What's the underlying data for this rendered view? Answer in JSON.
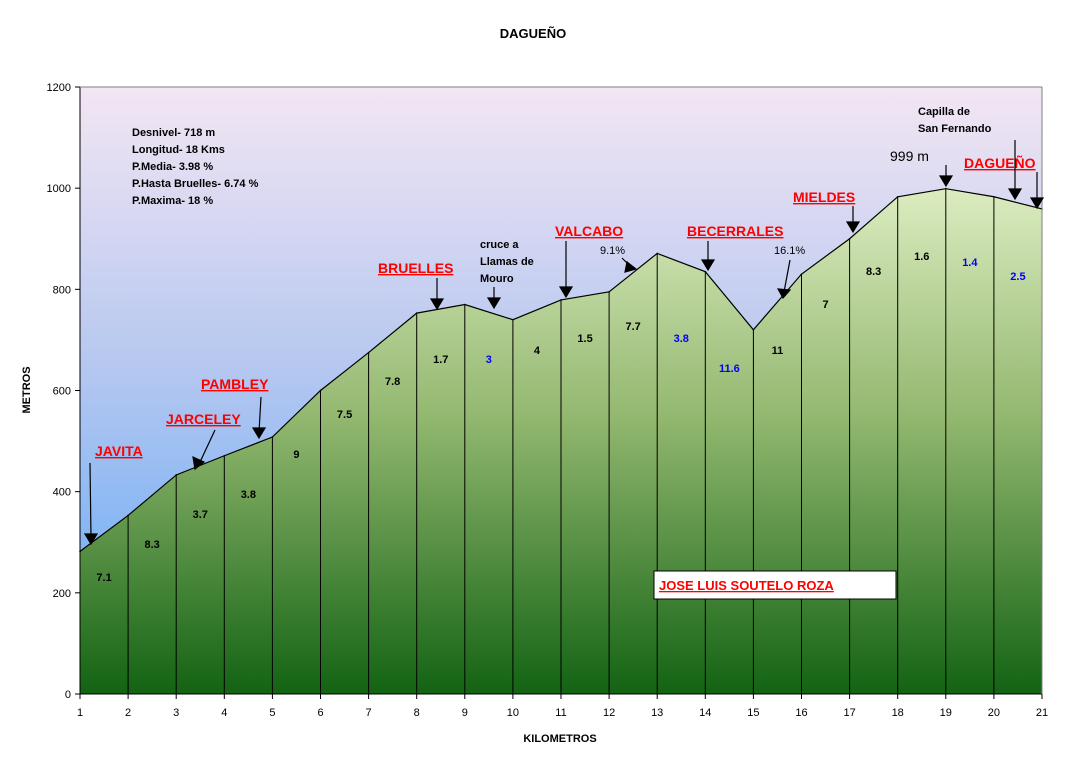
{
  "chart_data": {
    "type": "area",
    "title": "DAGUEÑO",
    "xlabel": "KILOMETROS",
    "ylabel": "METROS",
    "xlim": [
      1,
      21
    ],
    "ylim": [
      0,
      1200
    ],
    "x_ticks": [
      "1",
      "2",
      "3",
      "4",
      "5",
      "6",
      "7",
      "8",
      "9",
      "10",
      "11",
      "12",
      "13",
      "14",
      "15",
      "16",
      "17",
      "18",
      "19",
      "20",
      "21"
    ],
    "y_ticks": [
      "0",
      "200",
      "400",
      "600",
      "800",
      "1000",
      "1200"
    ],
    "x": [
      1,
      2,
      3,
      4,
      5,
      6,
      7,
      8,
      9,
      10,
      11,
      12,
      13,
      14,
      15,
      16,
      17,
      18,
      19,
      20,
      21
    ],
    "values": [
      282,
      353,
      433,
      471,
      508,
      600,
      675,
      753,
      770,
      740,
      779,
      795,
      871,
      835,
      720,
      830,
      900,
      983,
      999,
      983,
      959
    ],
    "segment_grades": [
      {
        "label": "7.1",
        "color": "#000000"
      },
      {
        "label": "8.3",
        "color": "#000000"
      },
      {
        "label": "3.7",
        "color": "#000000"
      },
      {
        "label": "3.8",
        "color": "#000000"
      },
      {
        "label": "9",
        "color": "#000000"
      },
      {
        "label": "7.5",
        "color": "#000000"
      },
      {
        "label": "7.8",
        "color": "#000000"
      },
      {
        "label": "1.7",
        "color": "#000000"
      },
      {
        "label": "3",
        "color": "#0000ff"
      },
      {
        "label": "4",
        "color": "#000000"
      },
      {
        "label": "1.5",
        "color": "#000000"
      },
      {
        "label": "7.7",
        "color": "#000000"
      },
      {
        "label": "3.8",
        "color": "#0000ff"
      },
      {
        "label": "11.6",
        "color": "#0000ff"
      },
      {
        "label": "11",
        "color": "#000000"
      },
      {
        "label": "7",
        "color": "#000000"
      },
      {
        "label": "8.3",
        "color": "#000000"
      },
      {
        "label": "1.6",
        "color": "#000000"
      },
      {
        "label": "1.4",
        "color": "#0000ff"
      },
      {
        "label": "2.5",
        "color": "#0000ff"
      }
    ],
    "info_lines": [
      "Desnivel- 718 m",
      "Longitud- 18 Kms",
      "P.Media- 3.98 %",
      "P.Hasta Bruelles- 6.74 %",
      "P.Maxima- 18 %"
    ],
    "places": [
      "JAVITA",
      "JARCELEY",
      "PAMBLEY",
      "BRUELLES",
      "VALCABO",
      "BECERRALES",
      "MIELDES",
      "DAGUEÑO"
    ],
    "notes": {
      "cruce": [
        "cruce a",
        "Llamas de",
        "Mouro"
      ],
      "capilla": [
        "Capilla de",
        "San Fernando"
      ],
      "peak_label": "999 m",
      "pct_valcabo": "9.1%",
      "pct_becerrales": "16.1%"
    },
    "author": "JOSE LUIS SOUTELO ROZA",
    "colors": {
      "sky_top": "#f3e6f3",
      "sky_bottom": "#6aaef6",
      "area_top": "#d6e8b8",
      "area_bottom": "#176417",
      "place_red": "#ff0000",
      "grade_blue": "#0000ff"
    },
    "grid": false,
    "legend": "none"
  }
}
